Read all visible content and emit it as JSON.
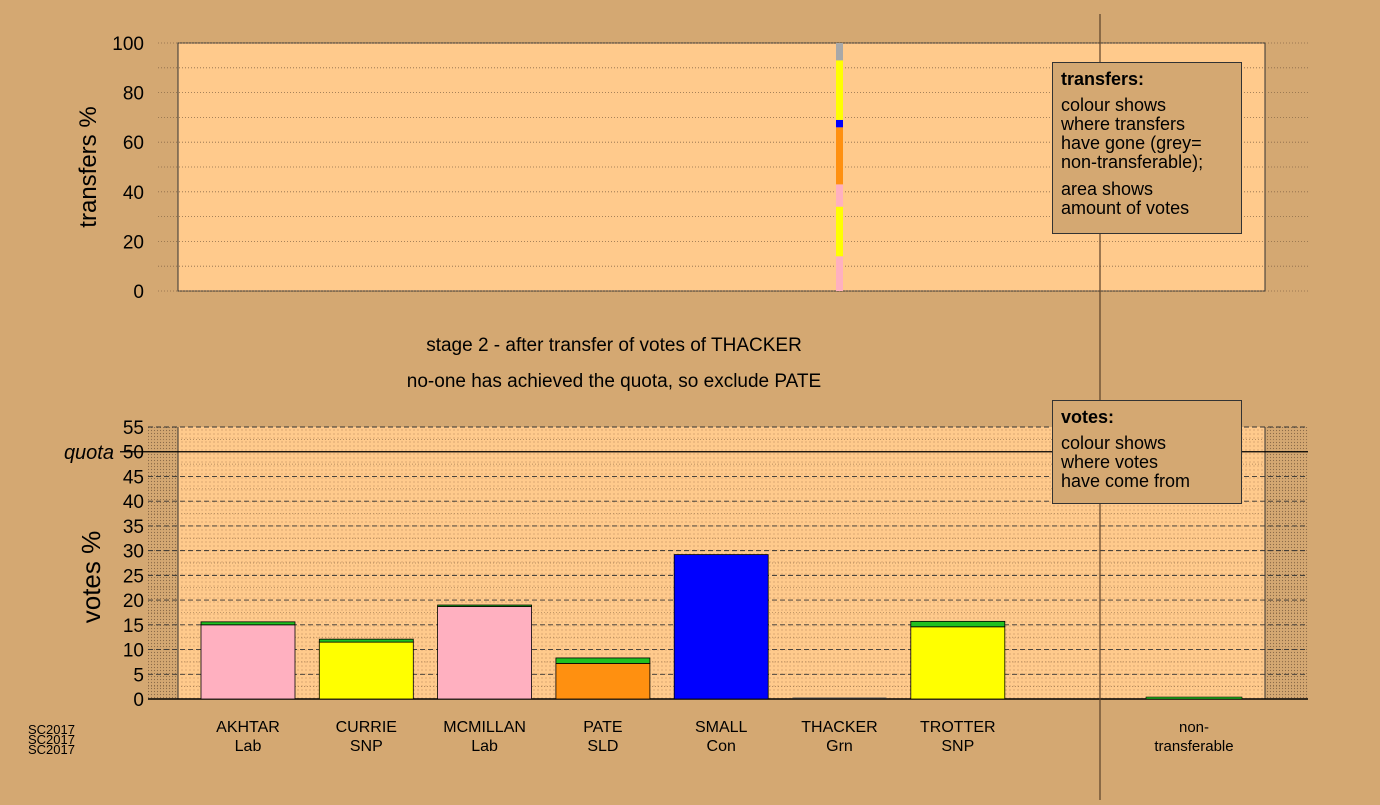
{
  "chart_data": [
    {
      "type": "bar",
      "title": "",
      "xlabel": "",
      "ylabel": "transfers %",
      "ylim": [
        0,
        100
      ],
      "yticks": [
        0,
        20,
        40,
        60,
        80,
        100
      ],
      "grid": "dotted",
      "stacked_column": {
        "candidate": "THACKER",
        "segments": [
          {
            "to": "AKHTAR",
            "value": 14,
            "color": "#ffb0c0"
          },
          {
            "to": "CURRIE",
            "value": 20,
            "color": "#ffff00"
          },
          {
            "to": "MCMILLAN",
            "value": 9,
            "color": "#ffb0c0"
          },
          {
            "to": "PATE",
            "value": 23,
            "color": "#ff9010"
          },
          {
            "to": "SMALL",
            "value": 3,
            "color": "#0000ff"
          },
          {
            "to": "TROTTER",
            "value": 24,
            "color": "#ffff00"
          },
          {
            "to": "non-transferable",
            "value": 7,
            "color": "#a8a8a8"
          }
        ]
      }
    },
    {
      "type": "bar",
      "title": "",
      "xlabel": "",
      "ylabel": "votes %",
      "ylim": [
        0,
        55
      ],
      "yticks": [
        0,
        5,
        10,
        15,
        20,
        25,
        30,
        35,
        40,
        45,
        50,
        55
      ],
      "quota": 50,
      "quota_label": "quota",
      "grid": "dashed",
      "categories": [
        {
          "name": "AKHTAR",
          "party": "Lab"
        },
        {
          "name": "CURRIE",
          "party": "SNP"
        },
        {
          "name": "MCMILLAN",
          "party": "Lab"
        },
        {
          "name": "PATE",
          "party": "SLD"
        },
        {
          "name": "SMALL",
          "party": "Con"
        },
        {
          "name": "THACKER",
          "party": "Grn"
        },
        {
          "name": "TROTTER",
          "party": "SNP"
        }
      ],
      "nontransferable": {
        "line1": "non-",
        "line2": "transferable",
        "value": 0.4
      },
      "series": [
        {
          "key": "first",
          "color_by_party": true,
          "values": [
            15.0,
            11.5,
            18.7,
            7.2,
            29.2,
            0.0,
            14.6
          ]
        },
        {
          "key": "from_thacker",
          "color": "#20c020",
          "values": [
            0.6,
            0.6,
            0.3,
            1.1,
            0.0,
            0.0,
            1.1
          ]
        }
      ],
      "bar_colors": [
        "#ffb0c0",
        "#ffff00",
        "#ffb0c0",
        "#ff9010",
        "#0000ff",
        "#20c020",
        "#ffff00"
      ]
    }
  ],
  "stage_text": "stage 2 - after transfer of votes of THACKER",
  "exclude_text": "no-one has achieved the quota, so exclude PATE",
  "legend_transfers": {
    "title": "transfers:",
    "lines": [
      "colour shows",
      "where transfers",
      "have gone (grey=",
      "non-transferable);"
    ],
    "lines2": [
      "area shows",
      "amount of votes"
    ]
  },
  "legend_votes": {
    "title": "votes:",
    "lines": [
      "colour shows",
      "where votes",
      "have come from"
    ]
  },
  "watermark": [
    "SC2017",
    "SC2017",
    "SC2017"
  ]
}
